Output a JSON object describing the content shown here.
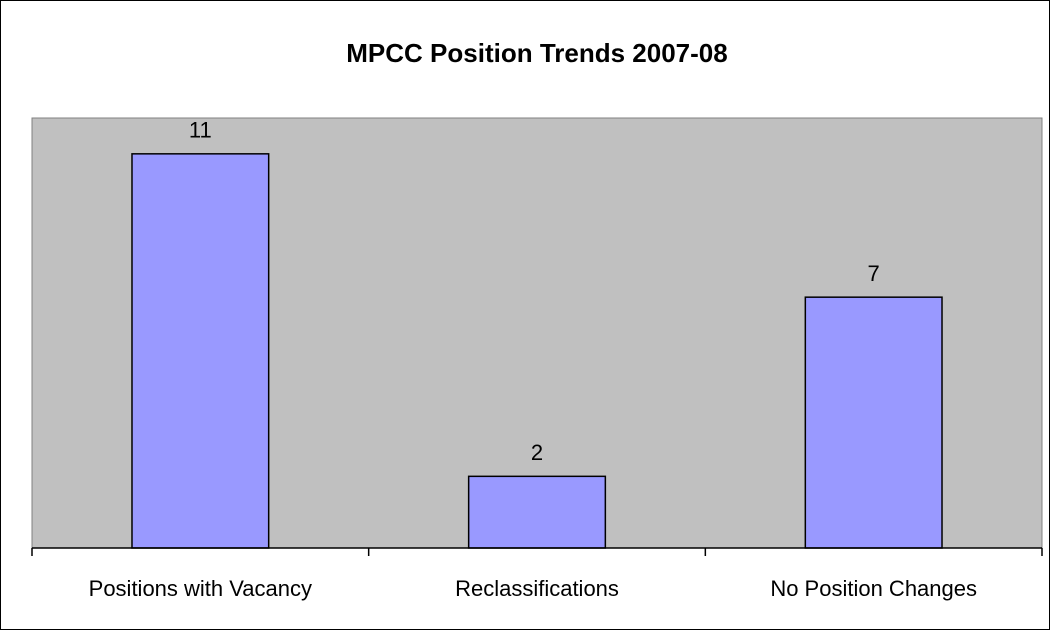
{
  "chart_data": {
    "type": "bar",
    "title": "MPCC Position Trends 2007-08",
    "categories": [
      "Positions with Vacancy",
      "Reclassifications",
      "No Position Changes"
    ],
    "values": [
      11,
      2,
      7
    ],
    "color": "#9999ff",
    "plot_background": "#c0c0c0",
    "ylim": [
      0,
      12
    ],
    "grid": false
  }
}
